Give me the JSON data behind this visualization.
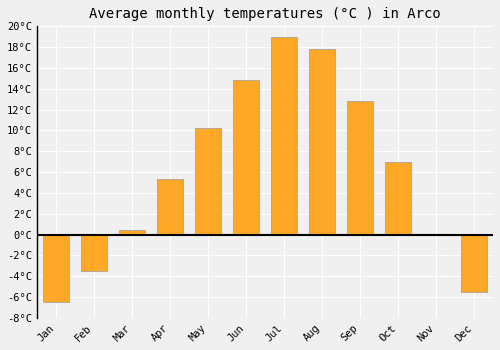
{
  "title": "Average monthly temperatures (°C ) in Arco",
  "months": [
    "Jan",
    "Feb",
    "Mar",
    "Apr",
    "May",
    "Jun",
    "Jul",
    "Aug",
    "Sep",
    "Oct",
    "Nov",
    "Dec"
  ],
  "temperatures": [
    -6.5,
    -3.5,
    0.4,
    5.3,
    10.2,
    14.8,
    19.0,
    17.8,
    12.8,
    7.0,
    0.0,
    -5.5
  ],
  "bar_color": "#FFA726",
  "bar_edge_color": "#999999",
  "background_color": "#f0f0f0",
  "grid_color": "#ffffff",
  "ylim": [
    -8,
    20
  ],
  "yticks": [
    -8,
    -6,
    -4,
    -2,
    0,
    2,
    4,
    6,
    8,
    10,
    12,
    14,
    16,
    18,
    20
  ],
  "ytick_labels": [
    "-8°C",
    "-6°C",
    "-4°C",
    "-2°C",
    "0°C",
    "2°C",
    "4°C",
    "6°C",
    "8°C",
    "10°C",
    "12°C",
    "14°C",
    "16°C",
    "18°C",
    "20°C"
  ],
  "title_fontsize": 10,
  "tick_fontsize": 7.5,
  "bar_width": 0.7
}
